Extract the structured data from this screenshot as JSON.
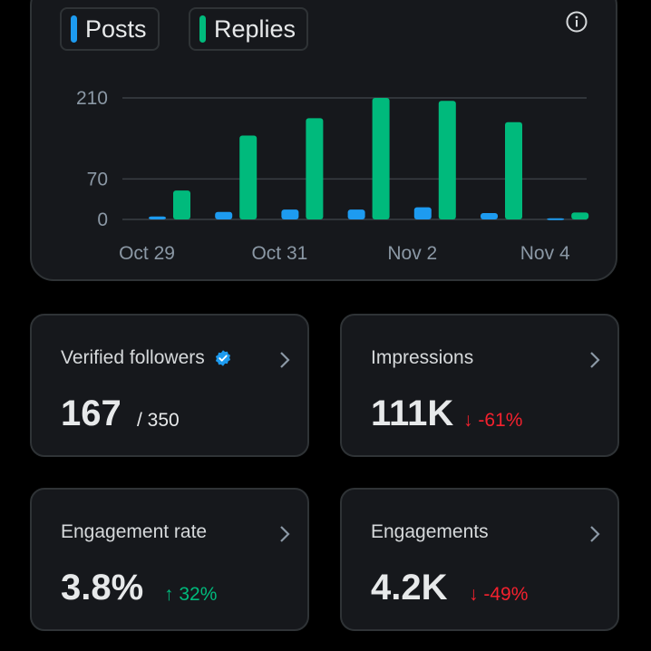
{
  "colors": {
    "posts": "#1d9bf0",
    "replies": "#00ba7c",
    "up": "#00ba7c",
    "down": "#f4212e",
    "grid": "#3a3f44"
  },
  "legend": [
    {
      "label": "Posts",
      "color_key": "posts"
    },
    {
      "label": "Replies",
      "color_key": "replies"
    }
  ],
  "chart_data": {
    "type": "bar",
    "categories": [
      "Oct 29",
      "Oct 30",
      "Oct 31",
      "Nov 1",
      "Nov 2",
      "Nov 3",
      "Nov 4"
    ],
    "x_tick_labels": [
      "Oct 29",
      "Oct 31",
      "Nov 2",
      "Nov 4"
    ],
    "y_ticks": [
      0,
      70,
      210
    ],
    "ylim": [
      0,
      210
    ],
    "series": [
      {
        "name": "Posts",
        "values": [
          5,
          13,
          17,
          17,
          21,
          11,
          2
        ]
      },
      {
        "name": "Replies",
        "values": [
          50,
          145,
          175,
          210,
          205,
          168,
          12
        ]
      }
    ]
  },
  "stats": {
    "verified": {
      "title": "Verified followers",
      "value": "167",
      "extra": "/ 350"
    },
    "impressions": {
      "title": "Impressions",
      "value": "111K",
      "change": "-61%",
      "arrow": "↓"
    },
    "engagement_rate": {
      "title": "Engagement rate",
      "value": "3.8%",
      "change": "32%",
      "arrow": "↑"
    },
    "engagements": {
      "title": "Engagements",
      "value": "4.2K",
      "change": "-49%",
      "arrow": "↓"
    }
  }
}
